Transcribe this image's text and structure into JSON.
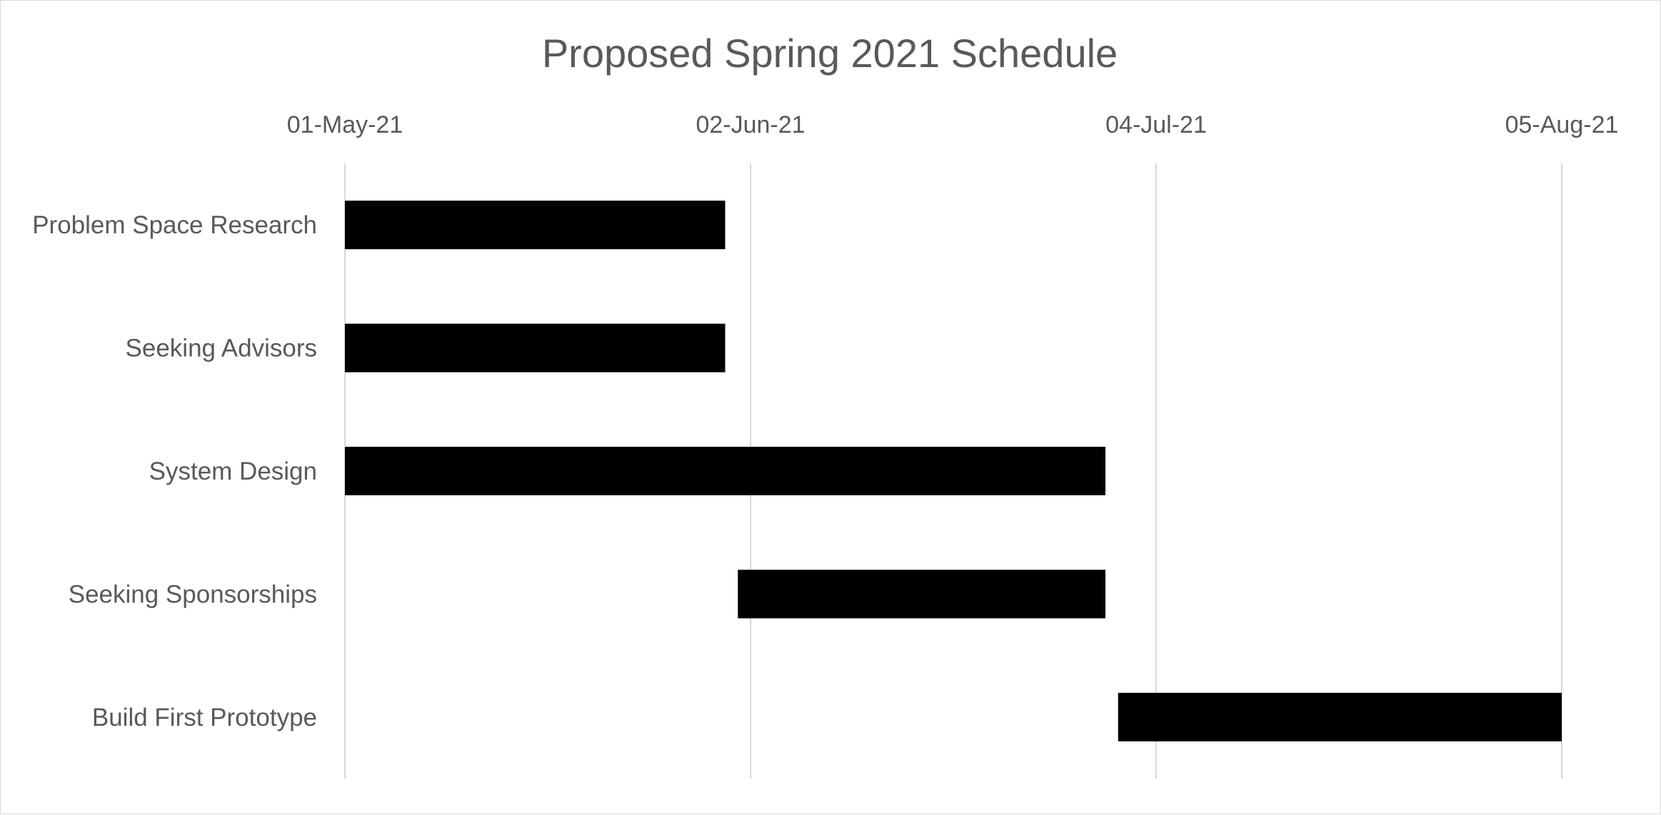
{
  "chart_data": {
    "type": "bar",
    "orientation": "horizontal",
    "title": "Proposed Spring 2021 Schedule",
    "x_axis": {
      "position": "top",
      "min": "2021-05-01",
      "max": "2021-08-05",
      "ticks": [
        {
          "date": "2021-05-01",
          "label": "01-May-21"
        },
        {
          "date": "2021-06-02",
          "label": "02-Jun-21"
        },
        {
          "date": "2021-07-04",
          "label": "04-Jul-21"
        },
        {
          "date": "2021-08-05",
          "label": "05-Aug-21"
        }
      ],
      "gridlines": true
    },
    "categories": [
      "Problem Space Research",
      "Seeking Advisors",
      "System Design",
      "Seeking Sponsorships",
      "Build First Prototype"
    ],
    "tasks": [
      {
        "name": "Problem Space Research",
        "start": "2021-05-01",
        "end": "2021-05-31"
      },
      {
        "name": "Seeking Advisors",
        "start": "2021-05-01",
        "end": "2021-05-31"
      },
      {
        "name": "System Design",
        "start": "2021-05-01",
        "end": "2021-06-30"
      },
      {
        "name": "Seeking Sponsorships",
        "start": "2021-06-01",
        "end": "2021-06-30"
      },
      {
        "name": "Build First Prototype",
        "start": "2021-07-01",
        "end": "2021-08-05"
      }
    ],
    "bar_color": "#000000",
    "legend": "none"
  }
}
